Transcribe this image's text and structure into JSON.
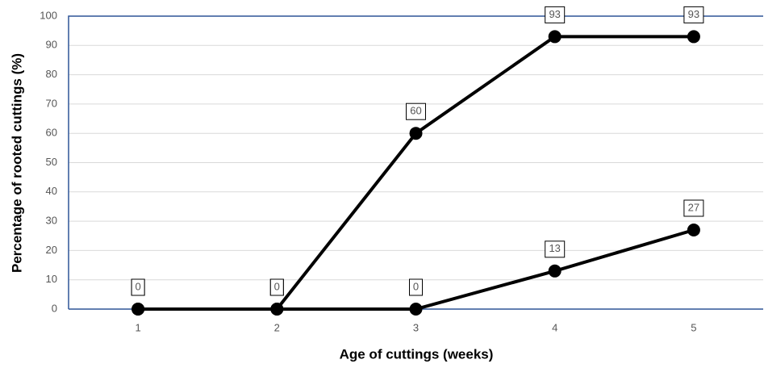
{
  "chart_data": {
    "type": "line",
    "xlabel": "Age of cuttings (weeks)",
    "ylabel": "Percentage of rooted cuttings (%)",
    "categories": [
      "1",
      "2",
      "3",
      "4",
      "5"
    ],
    "series": [
      {
        "color": "#000000",
        "values": [
          0,
          0,
          60,
          93,
          93
        ]
      },
      {
        "color": "#000000",
        "values": [
          0,
          0,
          0,
          13,
          27
        ]
      }
    ],
    "ylim": [
      0,
      100
    ],
    "yticks": [
      0,
      10,
      20,
      30,
      40,
      50,
      60,
      70,
      80,
      90,
      100
    ],
    "grid": true,
    "frame_color": "#2f5597"
  }
}
